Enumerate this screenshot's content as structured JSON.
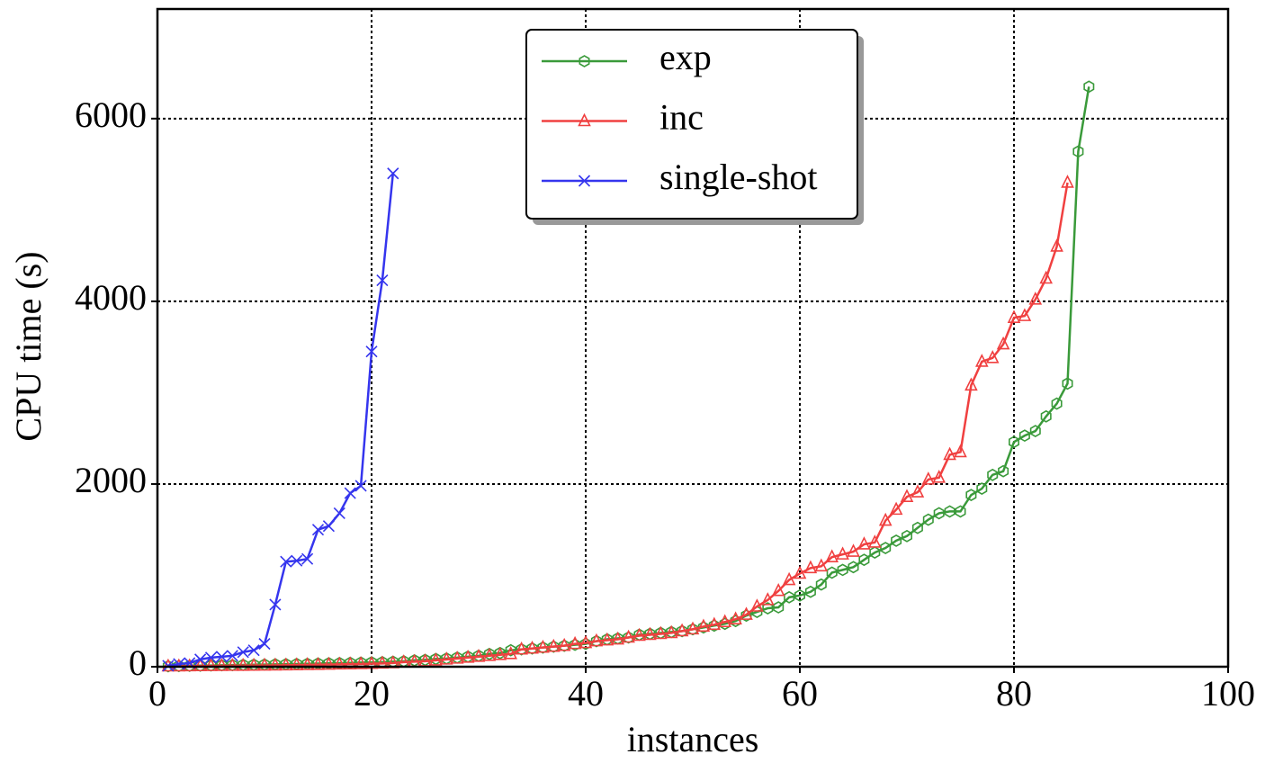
{
  "chart_data": {
    "type": "line",
    "xlabel": "instances",
    "ylabel": "CPU time (s)",
    "xlim": [
      0,
      100
    ],
    "ylim": [
      0,
      7200
    ],
    "xticks": [
      0,
      20,
      40,
      60,
      80,
      100
    ],
    "yticks": [
      0,
      2000,
      4000,
      6000
    ],
    "grid": true,
    "legend": "upper center",
    "series": [
      {
        "name": "exp",
        "color": "#3a9a3a",
        "marker": "hexagon",
        "x": [
          1,
          2,
          3,
          4,
          5,
          6,
          7,
          8,
          9,
          10,
          11,
          12,
          13,
          14,
          15,
          16,
          17,
          18,
          19,
          20,
          21,
          22,
          23,
          24,
          25,
          26,
          27,
          28,
          29,
          30,
          31,
          32,
          33,
          34,
          35,
          36,
          37,
          38,
          39,
          40,
          41,
          42,
          43,
          44,
          45,
          46,
          47,
          48,
          49,
          50,
          51,
          52,
          53,
          54,
          55,
          56,
          57,
          58,
          59,
          60,
          61,
          62,
          63,
          64,
          65,
          66,
          67,
          68,
          69,
          70,
          71,
          72,
          73,
          74,
          75,
          76,
          77,
          78,
          79,
          80,
          81,
          82,
          83,
          84,
          85,
          86,
          87
        ],
        "values": [
          5,
          8,
          10,
          12,
          14,
          16,
          18,
          20,
          22,
          24,
          26,
          28,
          30,
          32,
          35,
          38,
          40,
          42,
          45,
          48,
          50,
          55,
          60,
          70,
          75,
          85,
          90,
          100,
          110,
          120,
          140,
          150,
          180,
          190,
          200,
          210,
          220,
          230,
          240,
          250,
          280,
          300,
          310,
          320,
          350,
          360,
          370,
          380,
          390,
          410,
          430,
          450,
          470,
          500,
          560,
          600,
          640,
          650,
          760,
          780,
          820,
          900,
          1030,
          1060,
          1090,
          1170,
          1250,
          1300,
          1380,
          1430,
          1520,
          1610,
          1680,
          1700,
          1700,
          1880,
          1950,
          2100,
          2140,
          2460,
          2530,
          2580,
          2740,
          2880,
          3100,
          5640,
          6350
        ]
      },
      {
        "name": "inc",
        "color": "#f04040",
        "marker": "triangle",
        "x": [
          1,
          2,
          3,
          4,
          5,
          6,
          7,
          8,
          9,
          10,
          11,
          12,
          13,
          14,
          15,
          16,
          17,
          18,
          19,
          20,
          21,
          22,
          23,
          24,
          25,
          26,
          27,
          28,
          29,
          30,
          31,
          32,
          33,
          34,
          35,
          36,
          37,
          38,
          39,
          40,
          41,
          42,
          43,
          44,
          45,
          46,
          47,
          48,
          49,
          50,
          51,
          52,
          53,
          54,
          55,
          56,
          57,
          58,
          59,
          60,
          61,
          62,
          63,
          64,
          65,
          66,
          67,
          68,
          69,
          70,
          71,
          72,
          73,
          74,
          75,
          76,
          77,
          78,
          79,
          80,
          81,
          82,
          83,
          84,
          85
        ],
        "values": [
          5,
          6,
          7,
          8,
          9,
          10,
          11,
          12,
          13,
          14,
          15,
          16,
          18,
          20,
          22,
          24,
          26,
          28,
          30,
          33,
          36,
          40,
          50,
          55,
          60,
          70,
          80,
          90,
          100,
          110,
          120,
          130,
          140,
          190,
          200,
          210,
          220,
          230,
          250,
          260,
          280,
          290,
          300,
          320,
          340,
          350,
          360,
          370,
          390,
          410,
          440,
          460,
          490,
          520,
          570,
          660,
          730,
          830,
          950,
          1020,
          1080,
          1100,
          1200,
          1230,
          1260,
          1340,
          1360,
          1600,
          1720,
          1860,
          1910,
          2050,
          2070,
          2320,
          2350,
          3080,
          3340,
          3380,
          3530,
          3820,
          3840,
          4020,
          4250,
          4600,
          5300
        ]
      },
      {
        "name": "single-shot",
        "color": "#3535ee",
        "marker": "x",
        "x": [
          1,
          2,
          3,
          4,
          5,
          6,
          7,
          8,
          9,
          10,
          11,
          12,
          13,
          14,
          15,
          16,
          17,
          18,
          19,
          20,
          21,
          22
        ],
        "values": [
          10,
          30,
          40,
          80,
          100,
          110,
          120,
          160,
          180,
          250,
          680,
          1150,
          1160,
          1180,
          1500,
          1540,
          1680,
          1900,
          1980,
          3450,
          4230,
          5400
        ]
      }
    ]
  }
}
